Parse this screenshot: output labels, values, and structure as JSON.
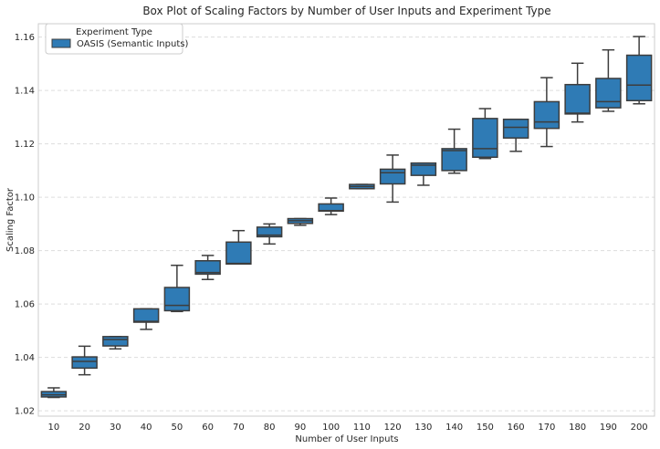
{
  "chart_data": {
    "type": "box",
    "title": "Box Plot of Scaling Factors by Number of User Inputs and Experiment Type",
    "xlabel": "Number of User Inputs",
    "ylabel": "Scaling Factor",
    "ylim": [
      1.018,
      1.165
    ],
    "yticks": [
      1.02,
      1.04,
      1.06,
      1.08,
      1.1,
      1.12,
      1.14,
      1.16
    ],
    "ytick_labels": [
      "1.02",
      "1.04",
      "1.06",
      "1.08",
      "1.10",
      "1.12",
      "1.14",
      "1.16"
    ],
    "grid": true,
    "legend": {
      "title": "Experiment Type",
      "placement": "top-left",
      "entries": [
        "OASIS (Semantic Inputs)"
      ]
    },
    "colors": {
      "box": "#2f7bb5",
      "line": "#3d3d3d",
      "grid": "#dddddd"
    },
    "categories": [
      "10",
      "20",
      "30",
      "40",
      "50",
      "60",
      "70",
      "80",
      "90",
      "100",
      "110",
      "120",
      "130",
      "140",
      "150",
      "160",
      "170",
      "180",
      "190",
      "200"
    ],
    "series": [
      {
        "name": "OASIS (Semantic Inputs)",
        "boxes": [
          {
            "whislo": 1.025,
            "q1": 1.0252,
            "med": 1.026,
            "q3": 1.0272,
            "whishi": 1.0286
          },
          {
            "whislo": 1.0335,
            "q1": 1.036,
            "med": 1.0385,
            "q3": 1.0402,
            "whishi": 1.0442
          },
          {
            "whislo": 1.0432,
            "q1": 1.0443,
            "med": 1.0467,
            "q3": 1.0478,
            "whishi": 1.0478
          },
          {
            "whislo": 1.0505,
            "q1": 1.0532,
            "med": 1.0535,
            "q3": 1.0582,
            "whishi": 1.0582
          },
          {
            "whislo": 1.0572,
            "q1": 1.0575,
            "med": 1.0595,
            "q3": 1.0662,
            "whishi": 1.0745
          },
          {
            "whislo": 1.0692,
            "q1": 1.0712,
            "med": 1.0718,
            "q3": 1.0762,
            "whishi": 1.0782
          },
          {
            "whislo": 1.075,
            "q1": 1.075,
            "med": 1.0752,
            "q3": 1.0832,
            "whishi": 1.0875
          },
          {
            "whislo": 1.0825,
            "q1": 1.0852,
            "med": 1.0858,
            "q3": 1.0888,
            "whishi": 1.09
          },
          {
            "whislo": 1.0895,
            "q1": 1.0902,
            "med": 1.0912,
            "q3": 1.092,
            "whishi": 1.092
          },
          {
            "whislo": 1.0935,
            "q1": 1.0948,
            "med": 1.095,
            "q3": 1.0975,
            "whishi": 1.0997
          },
          {
            "whislo": 1.1032,
            "q1": 1.1032,
            "med": 1.104,
            "q3": 1.1048,
            "whishi": 1.1048
          },
          {
            "whislo": 1.0982,
            "q1": 1.105,
            "med": 1.1092,
            "q3": 1.1105,
            "whishi": 1.1158
          },
          {
            "whislo": 1.1045,
            "q1": 1.1082,
            "med": 1.112,
            "q3": 1.1128,
            "whishi": 1.1128
          },
          {
            "whislo": 1.109,
            "q1": 1.11,
            "med": 1.1175,
            "q3": 1.1182,
            "whishi": 1.1255
          },
          {
            "whislo": 1.1145,
            "q1": 1.115,
            "med": 1.1182,
            "q3": 1.1295,
            "whishi": 1.1332
          },
          {
            "whislo": 1.1172,
            "q1": 1.1222,
            "med": 1.1262,
            "q3": 1.1292,
            "whishi": 1.1292
          },
          {
            "whislo": 1.119,
            "q1": 1.1258,
            "med": 1.1282,
            "q3": 1.1358,
            "whishi": 1.1448
          },
          {
            "whislo": 1.1282,
            "q1": 1.1312,
            "med": 1.1315,
            "q3": 1.1422,
            "whishi": 1.1502
          },
          {
            "whislo": 1.1322,
            "q1": 1.1335,
            "med": 1.1358,
            "q3": 1.1445,
            "whishi": 1.1552
          },
          {
            "whislo": 1.135,
            "q1": 1.1362,
            "med": 1.142,
            "q3": 1.1532,
            "whishi": 1.1602
          }
        ]
      }
    ]
  }
}
